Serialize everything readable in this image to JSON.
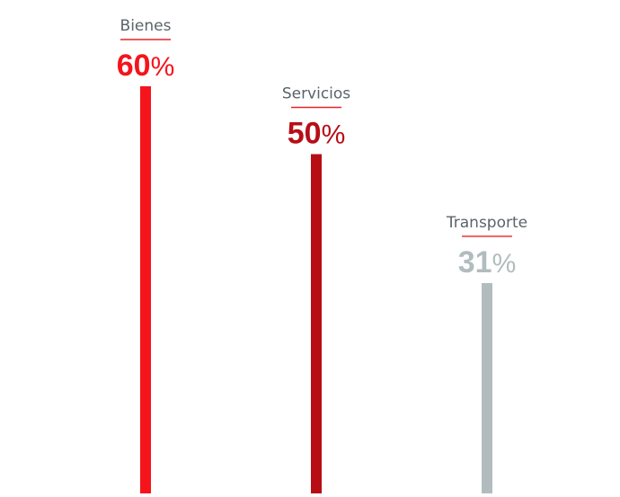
{
  "chart_data": {
    "type": "bar",
    "categories": [
      "Bienes",
      "Servicios",
      "Transporte"
    ],
    "values": [
      60,
      50,
      31
    ],
    "value_labels": [
      "60",
      "50",
      "31"
    ],
    "unit": "%",
    "colors": [
      "#f5141c",
      "#b70e16",
      "#b2bcbe"
    ],
    "rule_color": "#e8232a",
    "ylim": [
      0,
      60
    ],
    "title": "",
    "xlabel": "",
    "ylabel": "",
    "grid": false,
    "legend": "none"
  }
}
